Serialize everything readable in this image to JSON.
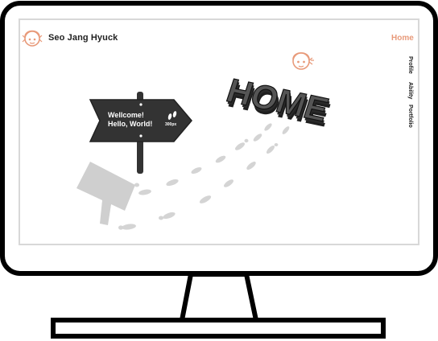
{
  "site": {
    "title": "Seo Jang Hyuck"
  },
  "nav": {
    "home": "Home",
    "profile": "Profile",
    "ability": "Ability",
    "portfolio": "Portfolio"
  },
  "sign": {
    "line1": "Wellcome!",
    "line2": "Hello, World!",
    "distance": "300px"
  },
  "hero": {
    "word": "HOME"
  },
  "icons": {
    "logo": "face-logo-icon",
    "hero_logo": "face-logo-icon",
    "footsteps": "footprints-icon"
  },
  "colors": {
    "accent": "#e89a7a",
    "text": "#222222",
    "sign": "#333333",
    "monitor_stroke": "#000000",
    "screen_border": "#d0d0d0",
    "shadow": "#cfcfcf"
  }
}
